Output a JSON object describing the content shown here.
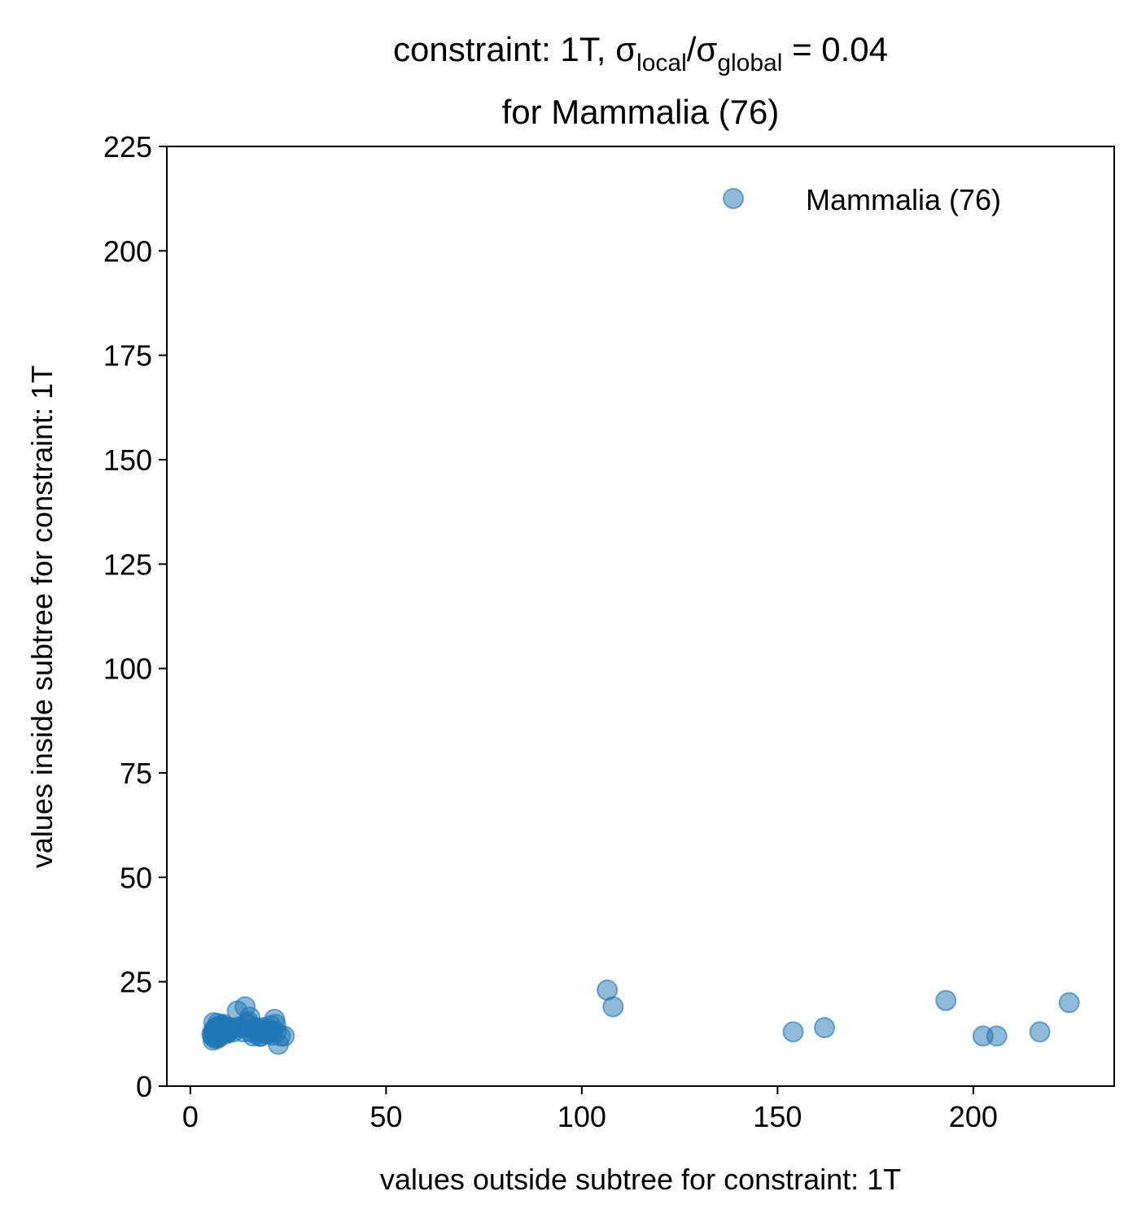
{
  "chart_data": {
    "type": "scatter",
    "title": {
      "line1_prefix": "constraint: 1T, σ",
      "sub1": "local",
      "mid": "/σ",
      "sub2": "global",
      "line1_suffix": " =  0.04",
      "line2": "for Mammalia (76)"
    },
    "xlabel": "values outside subtree for constraint: 1T",
    "ylabel": "values inside subtree for constraint: 1T",
    "xlim": [
      -6,
      236
    ],
    "ylim": [
      0,
      225
    ],
    "xticks": [
      0,
      50,
      100,
      150,
      200
    ],
    "yticks": [
      0,
      25,
      50,
      75,
      100,
      125,
      150,
      175,
      200,
      225
    ],
    "grid": false,
    "legend_position": "top-right",
    "series": [
      {
        "name": "Mammalia (76)",
        "color": "#1f77b4",
        "x": [
          5.5,
          6.0,
          6.2,
          6.5,
          6.8,
          7.0,
          7.2,
          7.5,
          7.8,
          8.0,
          5.8,
          6.3,
          6.7,
          7.1,
          7.4,
          7.9,
          8.3,
          8.7,
          9.0,
          9.5,
          10.0,
          10.5,
          6.0,
          6.6,
          7.3,
          5.7,
          6.9,
          8.5,
          9.2,
          9.8,
          11.0,
          12.0,
          13.0,
          13.5,
          14.0,
          14.5,
          15.0,
          15.5,
          16.0,
          16.5,
          17.0,
          17.5,
          18.0,
          18.5,
          19.0,
          19.5,
          20.0,
          20.5,
          21.0,
          21.5,
          22.0,
          22.5,
          23.0,
          24.0,
          16.8,
          17.8,
          18.8,
          19.8,
          12.5,
          14.8,
          21.8,
          6.1,
          7.6,
          8.1,
          106.5,
          108.0,
          154.0,
          162.0,
          193.0,
          202.5,
          206.0,
          217.0,
          224.5,
          15.2,
          17.2,
          20.8
        ],
        "y": [
          12.5,
          13.0,
          11.5,
          14.0,
          12.0,
          15.0,
          13.5,
          12.8,
          14.5,
          13.2,
          11.0,
          13.8,
          12.2,
          14.2,
          11.8,
          13.6,
          12.9,
          14.1,
          13.0,
          12.7,
          13.5,
          14.0,
          15.2,
          12.4,
          13.1,
          12.1,
          11.4,
          14.8,
          12.6,
          13.3,
          13.0,
          18.0,
          14.0,
          13.0,
          19.0,
          15.0,
          14.5,
          13.0,
          12.0,
          14.0,
          12.5,
          13.5,
          12.0,
          14.0,
          13.0,
          12.5,
          13.5,
          14.5,
          13.0,
          16.0,
          13.0,
          10.0,
          12.0,
          12.0,
          13.2,
          11.9,
          12.8,
          13.6,
          14.2,
          15.5,
          14.8,
          13.4,
          12.3,
          14.6,
          23.0,
          19.0,
          13.0,
          14.0,
          20.5,
          12.0,
          12.0,
          13.0,
          20.0,
          16.5,
          13.8,
          12.2
        ]
      }
    ]
  }
}
